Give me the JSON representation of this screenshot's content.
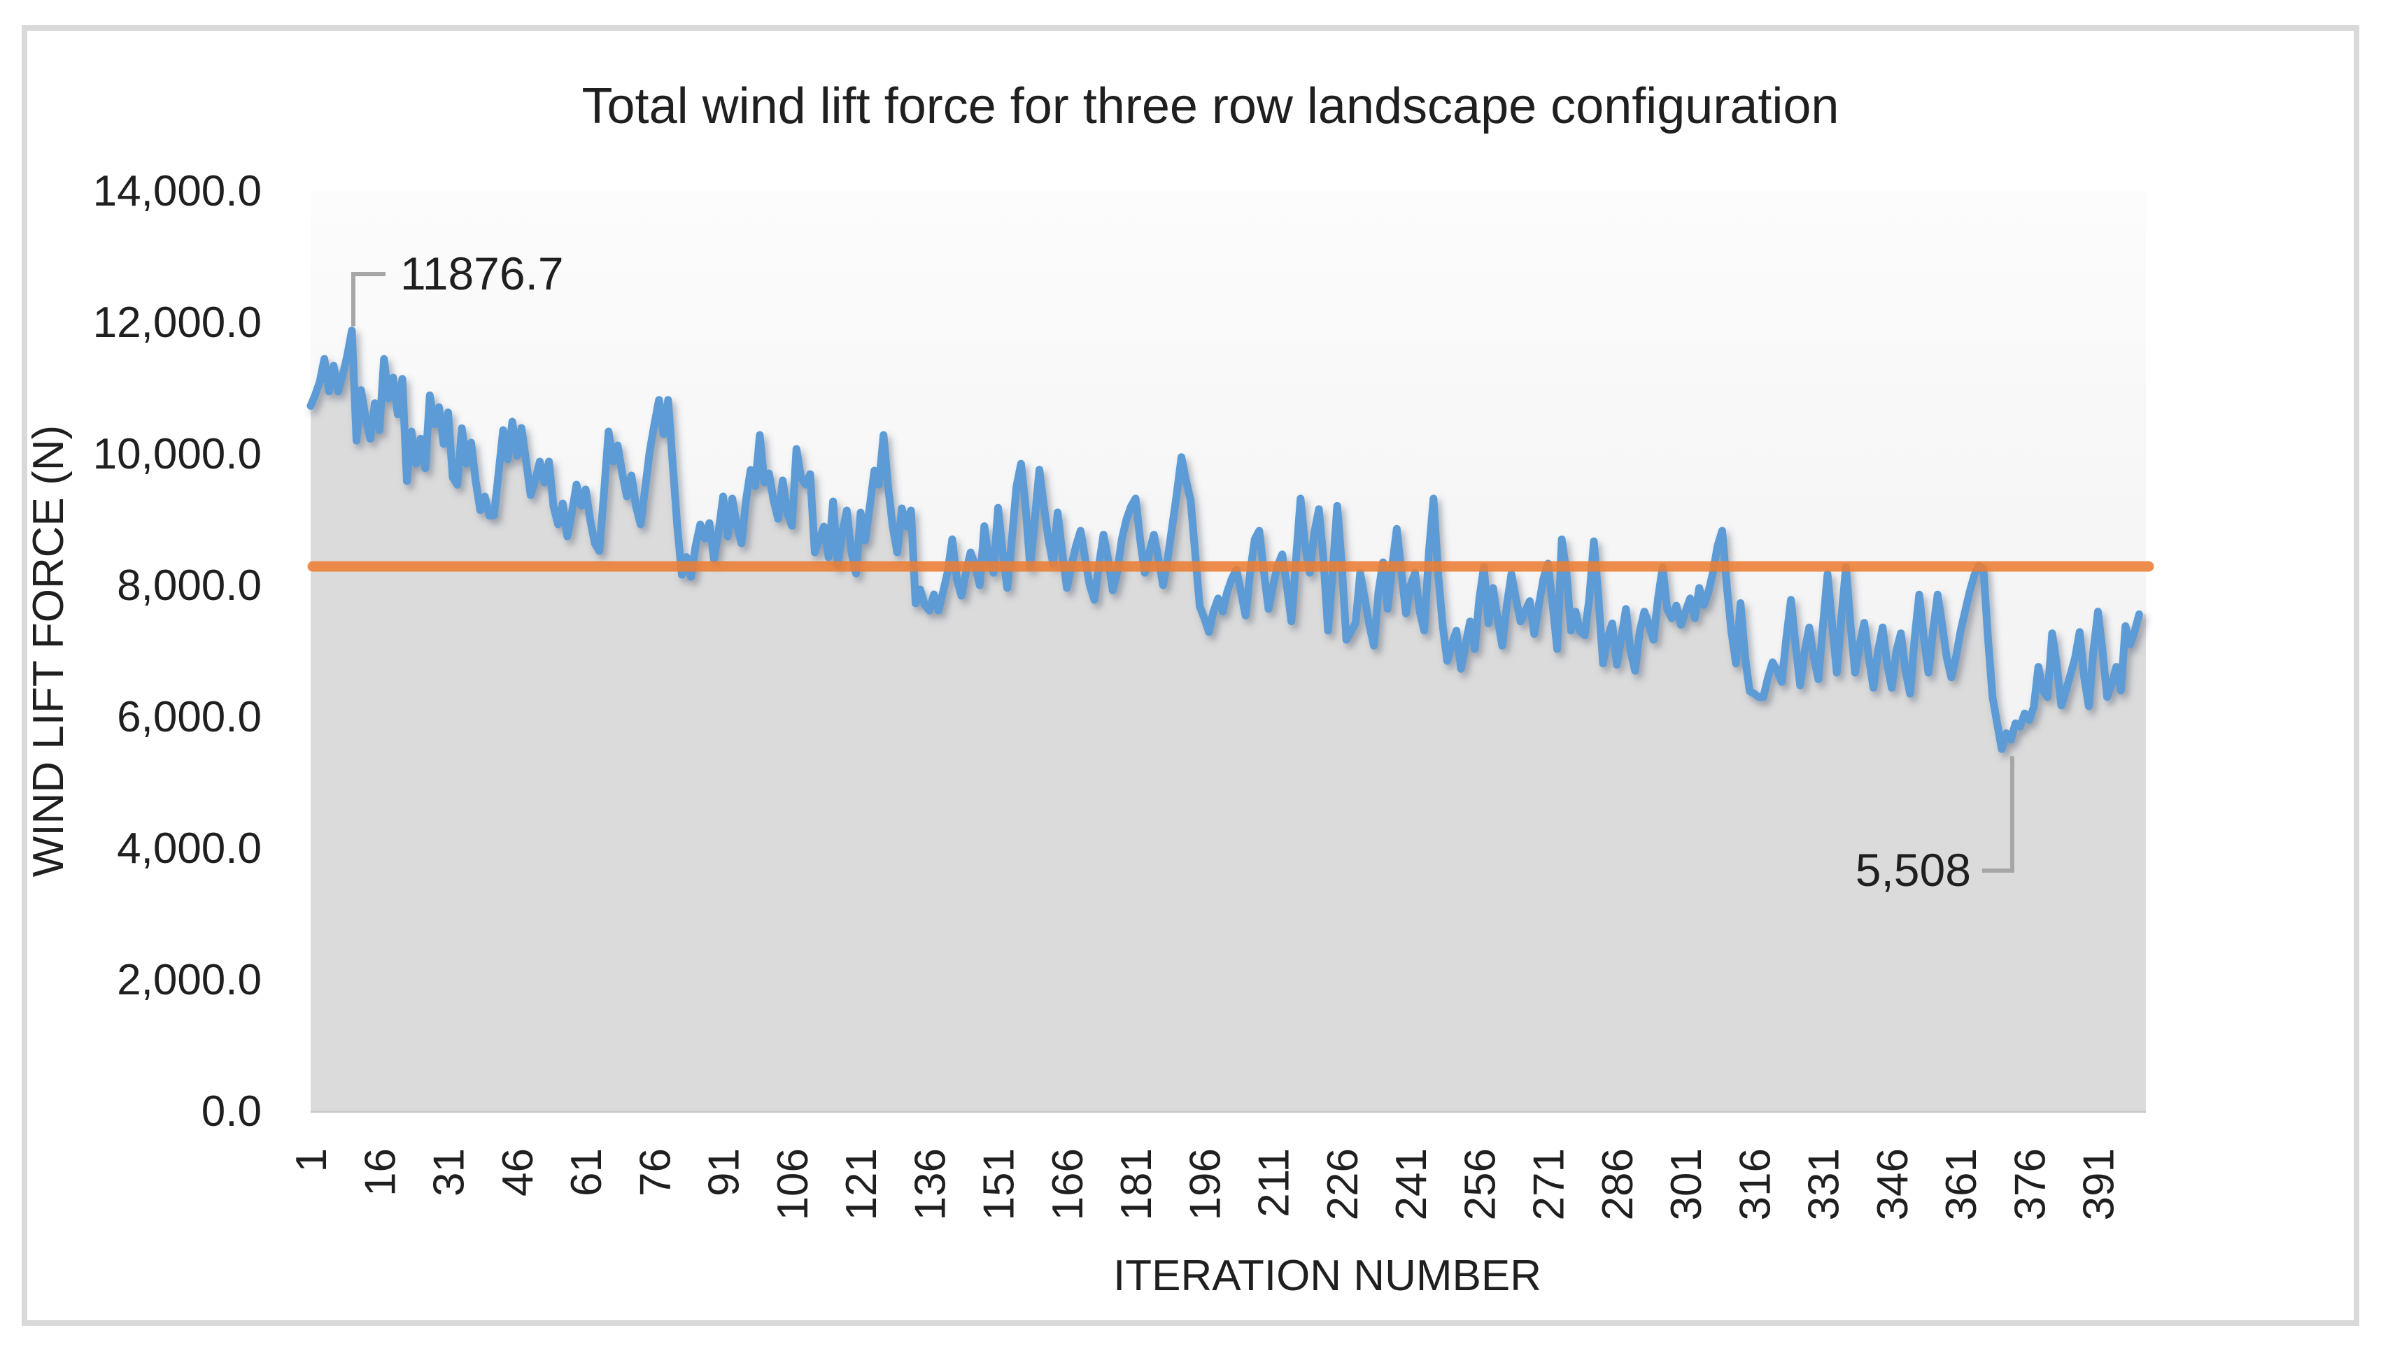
{
  "page": {
    "background": "#FFFFFF",
    "frame_color": "#D9D9D9"
  },
  "chart_data": {
    "type": "line",
    "title": "Total wind lift force for three row landscape configuration",
    "xlabel": "ITERATION NUMBER",
    "ylabel": "WIND LIFT FORCE (N)",
    "ylim": [
      0,
      14000
    ],
    "x_range": [
      1,
      400
    ],
    "grid": "off",
    "legend": "none",
    "ytick_values": [
      14000,
      12000,
      10000,
      8000,
      6000,
      4000,
      2000,
      0
    ],
    "ytick_labels": [
      "14,000.0",
      "12,000.0",
      "10,000.0",
      "8,000.0",
      "6,000.0",
      "4,000.0",
      "2,000.0",
      "0.0"
    ],
    "xtick_values": [
      1,
      16,
      31,
      46,
      61,
      76,
      91,
      106,
      121,
      136,
      151,
      166,
      181,
      196,
      211,
      226,
      241,
      256,
      271,
      286,
      301,
      316,
      331,
      346,
      361,
      376,
      391
    ],
    "xtick_labels": [
      "1",
      "16",
      "31",
      "46",
      "61",
      "76",
      "91",
      "106",
      "121",
      "136",
      "151",
      "166",
      "181",
      "196",
      "211",
      "226",
      "241",
      "256",
      "271",
      "286",
      "301",
      "316",
      "331",
      "346",
      "361",
      "376",
      "391"
    ],
    "reference_line": {
      "value": 8287,
      "color": "#ED7D31"
    },
    "annotations": [
      {
        "id": "max",
        "text": "11876.7",
        "iteration": 10,
        "value": 11876.7
      },
      {
        "id": "min",
        "text": "5,508",
        "iteration": 370,
        "value": 5508
      }
    ],
    "series": [
      {
        "name": "Total wind lift force",
        "color": "#5B9BD5",
        "x_start": 1,
        "values": [
          10730,
          10900,
          11100,
          11445,
          10950,
          11340,
          10950,
          11200,
          11500,
          11876.7,
          10200,
          10970,
          10550,
          10230,
          10770,
          10360,
          11445,
          10840,
          11160,
          10600,
          11140,
          9585,
          10340,
          9850,
          10230,
          9780,
          10890,
          10450,
          10710,
          10150,
          10630,
          9640,
          9530,
          10390,
          9850,
          10170,
          9590,
          9140,
          9350,
          9060,
          9064,
          9700,
          10362,
          9915,
          10489,
          9968,
          10394,
          9900,
          9372,
          9600,
          9883,
          9564,
          9883,
          9200,
          8926,
          9245,
          8745,
          9100,
          9532,
          9213,
          9457,
          9000,
          8639,
          8522,
          9400,
          10340,
          9883,
          10128,
          9700,
          9351,
          9670,
          9200,
          8926,
          9480,
          10050,
          10450,
          10820,
          10300,
          10820,
          9850,
          8900,
          8160,
          8430,
          8128,
          8600,
          8926,
          8713,
          8947,
          8394,
          8800,
          9351,
          8745,
          9319,
          8900,
          8639,
          9300,
          9755,
          9510,
          10287,
          9564,
          9702,
          9300,
          9011,
          9596,
          9100,
          8905,
          10074,
          9650,
          9532,
          9691,
          8500,
          8700,
          8894,
          8426,
          9277,
          8309,
          8800,
          9138,
          8500,
          8181,
          9106,
          8681,
          9200,
          9745,
          9532,
          10287,
          9500,
          8900,
          8500,
          9170,
          8894,
          9138,
          7723,
          7936,
          7700,
          7617,
          7862,
          7617,
          7900,
          8200,
          8700,
          8100,
          7840,
          8200,
          8500,
          8300,
          8000,
          8900,
          8400,
          8190,
          9180,
          8500,
          7960,
          8700,
          9500,
          9850,
          9200,
          8280,
          9000,
          9760,
          9200,
          8700,
          8330,
          9110,
          8500,
          7960,
          8300,
          8600,
          8830,
          8400,
          8000,
          7780,
          8300,
          8770,
          8400,
          7920,
          8200,
          8700,
          9000,
          9200,
          9320,
          8700,
          8190,
          8500,
          8770,
          8400,
          8000,
          8400,
          8900,
          9400,
          9950,
          9600,
          9300,
          8500,
          7680,
          7500,
          7290,
          7600,
          7800,
          7600,
          7900,
          8100,
          8240,
          7900,
          7540,
          8200,
          8700,
          8830,
          8200,
          7640,
          8000,
          8300,
          8470,
          8000,
          7450,
          8400,
          9320,
          8600,
          8190,
          8800,
          9160,
          8400,
          7310,
          8200,
          9210,
          8300,
          7170,
          7300,
          7420,
          8190,
          7800,
          7400,
          7080,
          7900,
          8350,
          7640,
          8300,
          8860,
          8200,
          7570,
          8000,
          8190,
          7600,
          7310,
          8500,
          9320,
          8190,
          7400,
          6850,
          7100,
          7310,
          6730,
          7100,
          7450,
          7030,
          7800,
          8280,
          7420,
          7960,
          7500,
          7080,
          7700,
          8170,
          7800,
          7450,
          7600,
          7760,
          7260,
          7700,
          8100,
          8330,
          7700,
          7030,
          8700,
          8200,
          7310,
          7600,
          7300,
          7240,
          7800,
          8670,
          7800,
          6810,
          7200,
          7420,
          6790,
          7200,
          7640,
          7000,
          6700,
          7300,
          7600,
          7400,
          7170,
          7800,
          8280,
          7640,
          7500,
          7690,
          7400,
          7600,
          7800,
          7500,
          7960,
          7700,
          7900,
          8200,
          8600,
          8830,
          8000,
          7300,
          6810,
          7730,
          6900,
          6390,
          6350,
          6300,
          6300,
          6600,
          6830,
          6700,
          6530,
          7200,
          7780,
          7100,
          6480,
          7000,
          7360,
          6900,
          6570,
          7400,
          8170,
          7400,
          6670,
          7500,
          8280,
          7400,
          6670,
          7100,
          7430,
          6900,
          6440,
          7000,
          7360,
          6800,
          6440,
          7000,
          7270,
          6700,
          6350,
          7200,
          7860,
          7200,
          6670,
          7300,
          7860,
          7400,
          6900,
          6600,
          6900,
          7300,
          7600,
          7900,
          8150,
          8300,
          8250,
          7200,
          6300,
          5900,
          5508,
          5750,
          5650,
          5900,
          5850,
          6050,
          5950,
          6150,
          6760,
          6400,
          6300,
          7270,
          6800,
          6170,
          6400,
          6640,
          6900,
          7290,
          6600,
          6160,
          7000,
          7600,
          7000,
          6300,
          6500,
          6760,
          6400,
          7380,
          7100,
          7300,
          7560
        ]
      }
    ],
    "colors": {
      "series_line": "#5B9BD5",
      "series_shadow": "#44546A",
      "reference_line": "#ED7D31",
      "area_fill": "#DBDBDB",
      "plot_bg_top": "#FCFCFC",
      "plot_bg_bottom": "#E9E9E9",
      "baseline": "#C9C9C9",
      "leader": "#A6A6A6",
      "text": "#1F1F1F"
    }
  }
}
